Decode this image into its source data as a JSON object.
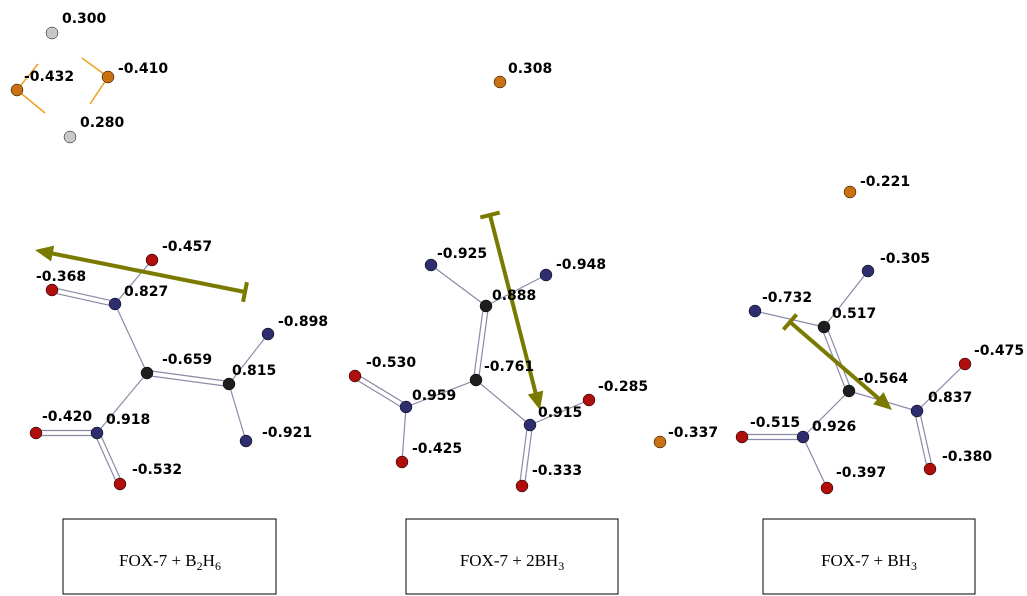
{
  "molecules": [
    {
      "charges": [
        "0.300",
        "-0.432",
        "-0.410",
        "0.280",
        "-0.457",
        "-0.368",
        "0.827",
        "-0.898",
        "-0.659",
        "0.815",
        "-0.420",
        "0.918",
        "-0.921",
        "-0.532"
      ],
      "caption": [
        {
          "text": "FOX-7 + B"
        },
        {
          "sub": "2"
        },
        {
          "text": "H"
        },
        {
          "sub": "6"
        }
      ]
    },
    {
      "charges": [
        "0.308",
        "-0.925",
        "-0.948",
        "0.888",
        "-0.761",
        "-0.530",
        "0.959",
        "-0.425",
        "-0.285",
        "0.915",
        "-0.333",
        "-0.337"
      ],
      "caption": [
        {
          "text": "FOX-7 + 2BH"
        },
        {
          "sub": "3"
        }
      ]
    },
    {
      "charges": [
        "-0.221",
        "-0.305",
        "-0.732",
        "0.517",
        "-0.475",
        "-0.564",
        "0.837",
        "0.926",
        "-0.515",
        "-0.397",
        "-0.380"
      ],
      "caption": [
        {
          "text": "FOX-7 + BH"
        },
        {
          "sub": "3"
        }
      ]
    }
  ]
}
